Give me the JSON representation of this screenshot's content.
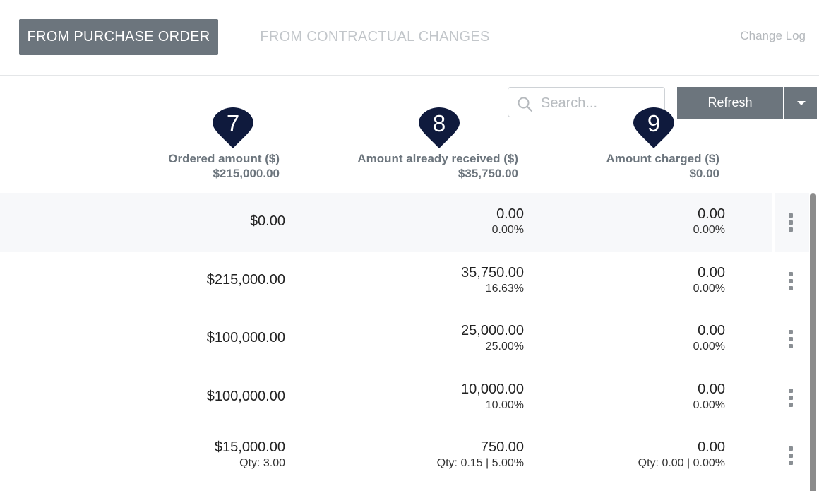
{
  "tabs": {
    "active": "FROM PURCHASE ORDER",
    "inactive": "FROM CONTRACTUAL CHANGES",
    "change_log": "Change Log"
  },
  "toolbar": {
    "search_placeholder": "Search...",
    "refresh_label": "Refresh"
  },
  "markers": [
    "7",
    "8",
    "9"
  ],
  "columns": [
    {
      "label": "Ordered amount ($)",
      "total": "$215,000.00"
    },
    {
      "label": "Amount already received ($)",
      "total": "$35,750.00"
    },
    {
      "label": "Amount charged ($)",
      "total": "$0.00"
    }
  ],
  "rows": [
    {
      "ordered": "$0.00",
      "ordered_qty": "",
      "received": "0.00",
      "received_sub": "0.00%",
      "charged": "0.00",
      "charged_sub": "0.00%"
    },
    {
      "ordered": "$215,000.00",
      "ordered_qty": "",
      "received": "35,750.00",
      "received_sub": "16.63%",
      "charged": "0.00",
      "charged_sub": "0.00%"
    },
    {
      "ordered": "$100,000.00",
      "ordered_qty": "",
      "received": "25,000.00",
      "received_sub": "25.00%",
      "charged": "0.00",
      "charged_sub": "0.00%"
    },
    {
      "ordered": "$100,000.00",
      "ordered_qty": "",
      "received": "10,000.00",
      "received_sub": "10.00%",
      "charged": "0.00",
      "charged_sub": "0.00%"
    },
    {
      "ordered": "$15,000.00",
      "ordered_qty": "Qty: 3.00",
      "received": "750.00",
      "received_sub": "Qty: 0.15 |  5.00%",
      "charged": "0.00",
      "charged_sub": "Qty: 0.00 |  0.00%"
    }
  ],
  "colors": {
    "tab_active_bg": "#6c757d",
    "marker_fill": "#0f1a3d",
    "header_text": "#6c757d",
    "highlight_row": "#f7f8fa"
  }
}
